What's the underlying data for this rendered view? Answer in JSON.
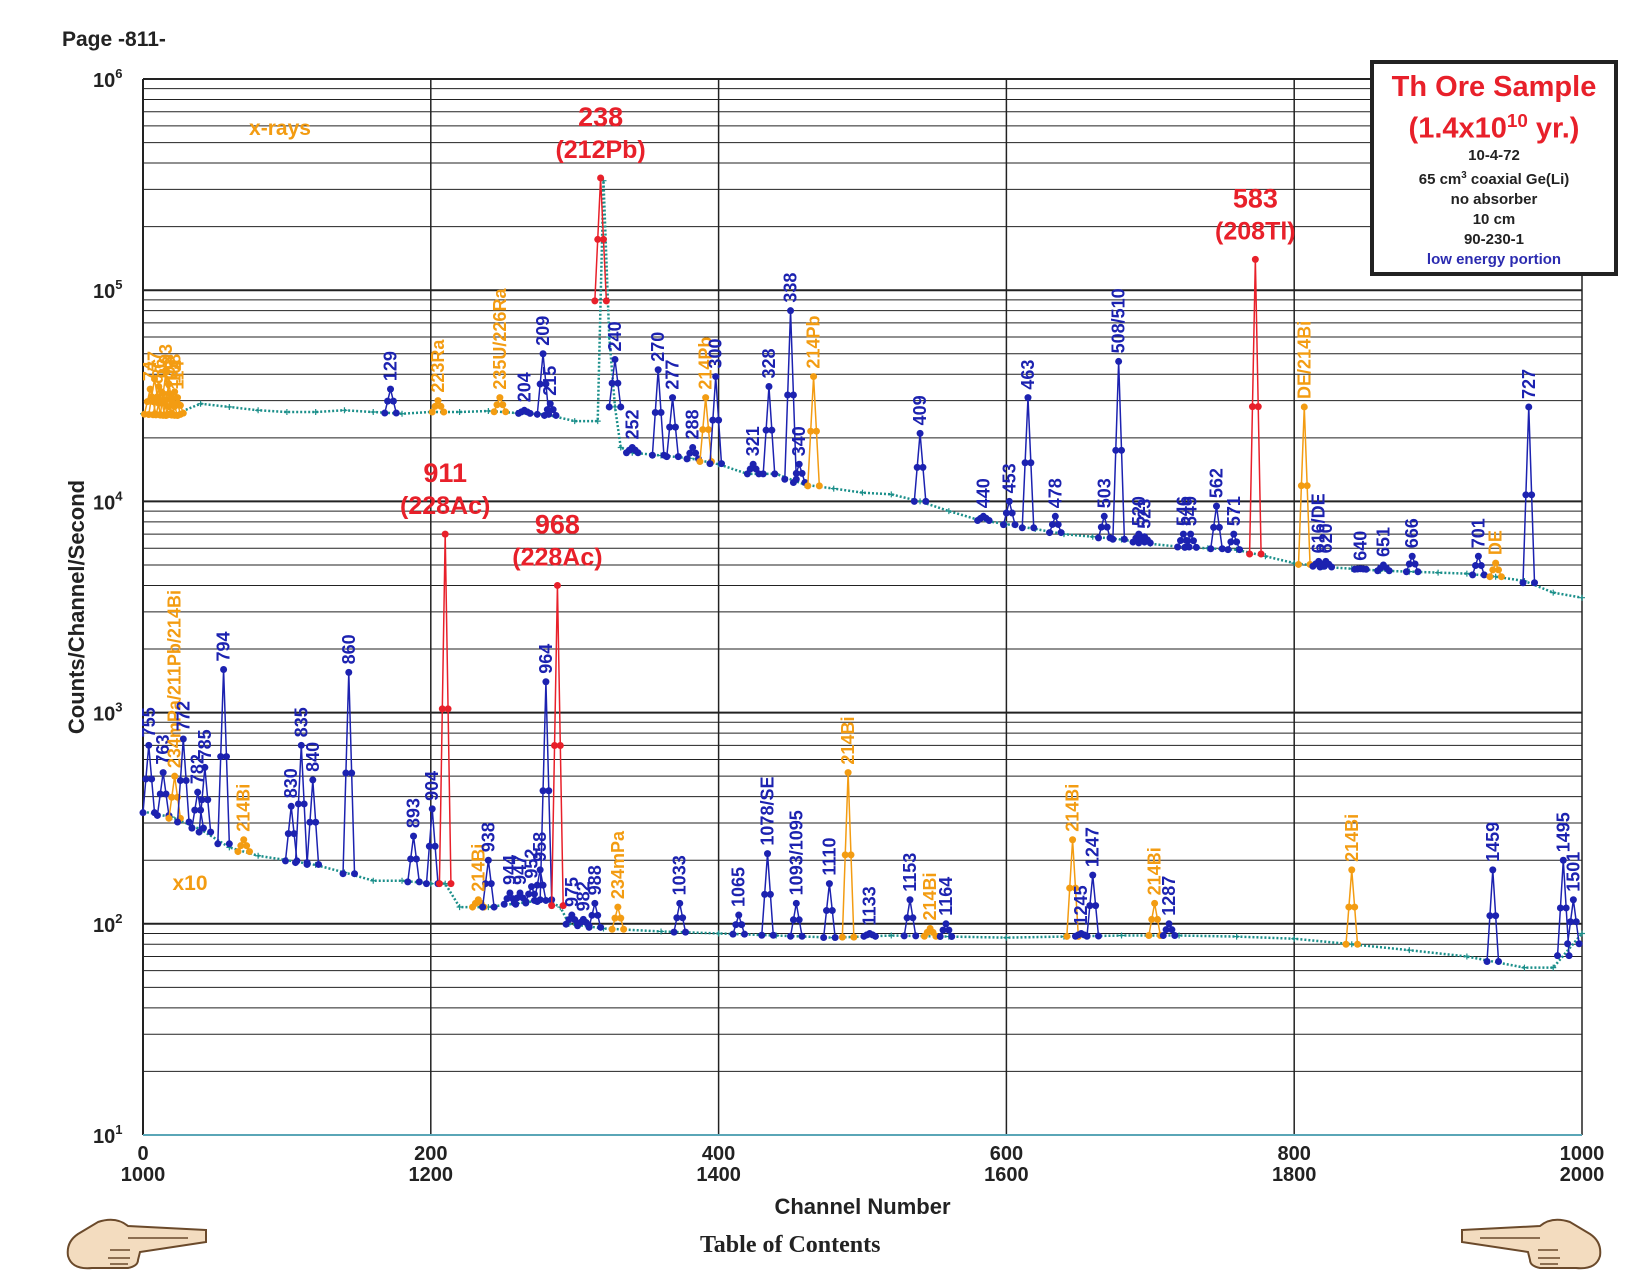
{
  "page_title": "Page -811-",
  "footer": {
    "toc_label": "Table of Contents",
    "prev_icon": "pointing-hand-left-icon",
    "next_icon": "pointing-hand-right-icon"
  },
  "info_box": {
    "title": "Th Ore Sample",
    "age_prefix": "(1.4x10",
    "age_exp": "10",
    "age_suffix": " yr.)",
    "date": "10-4-72",
    "detector_prefix": "65 cm",
    "detector_exp": "3",
    "detector_suffix": " coaxial Ge(Li)",
    "absorber": "no absorber",
    "distance": "10 cm",
    "id": "90-230-1",
    "portion": "low energy portion"
  },
  "colors": {
    "blue": "#1c22b0",
    "orange": "#f39c12",
    "red": "#e8202a",
    "teal": "#1b8f8a",
    "grid": "#222222"
  },
  "chart_data": {
    "type": "scatter",
    "ylabel": "Counts/Channel/Second",
    "xlabel": "Channel Number",
    "log_y": true,
    "ylim": [
      10,
      1000000
    ],
    "xlim": [
      0,
      1000
    ],
    "x_ticks_top": [
      "0",
      "200",
      "400",
      "600",
      "800",
      "1000"
    ],
    "x_ticks_bottom": [
      "1000",
      "1200",
      "1400",
      "1600",
      "1800",
      "2000"
    ],
    "y_ticks": [
      {
        "base": "10",
        "exp": "1",
        "value": 10
      },
      {
        "base": "10",
        "exp": "2",
        "value": 100
      },
      {
        "base": "10",
        "exp": "3",
        "value": 1000
      },
      {
        "base": "10",
        "exp": "4",
        "value": 10000
      },
      {
        "base": "10",
        "exp": "5",
        "value": 100000
      },
      {
        "base": "10",
        "exp": "6",
        "value": 1000000
      }
    ],
    "scale_note": "x10",
    "xray_label": "x-rays",
    "upper_series": [
      [
        0,
        26000
      ],
      [
        20,
        25500
      ],
      [
        40,
        29000
      ],
      [
        60,
        28000
      ],
      [
        80,
        27000
      ],
      [
        100,
        26500
      ],
      [
        120,
        26500
      ],
      [
        140,
        27000
      ],
      [
        160,
        26500
      ],
      [
        180,
        26000
      ],
      [
        200,
        26500
      ],
      [
        220,
        26500
      ],
      [
        240,
        26800
      ],
      [
        260,
        26200
      ],
      [
        280,
        25800
      ],
      [
        300,
        24000
      ],
      [
        316,
        24000
      ],
      [
        320,
        330000
      ],
      [
        324,
        60000
      ],
      [
        328,
        28000
      ],
      [
        332,
        18000
      ],
      [
        340,
        17000
      ],
      [
        360,
        16500
      ],
      [
        380,
        16000
      ],
      [
        400,
        15000
      ],
      [
        420,
        13500
      ],
      [
        440,
        13500
      ],
      [
        460,
        12000
      ],
      [
        480,
        11500
      ],
      [
        500,
        11000
      ],
      [
        520,
        10800
      ],
      [
        540,
        10000
      ],
      [
        560,
        9000
      ],
      [
        580,
        8200
      ],
      [
        600,
        7800
      ],
      [
        620,
        7400
      ],
      [
        640,
        7000
      ],
      [
        660,
        6800
      ],
      [
        680,
        6600
      ],
      [
        700,
        6300
      ],
      [
        720,
        6100
      ],
      [
        740,
        6000
      ],
      [
        760,
        5900
      ],
      [
        780,
        5500
      ],
      [
        800,
        5100
      ],
      [
        820,
        4900
      ],
      [
        840,
        4800
      ],
      [
        860,
        4700
      ],
      [
        880,
        4650
      ],
      [
        900,
        4600
      ],
      [
        920,
        4550
      ],
      [
        940,
        4400
      ],
      [
        960,
        4200
      ],
      [
        980,
        3700
      ],
      [
        1000,
        3500
      ]
    ],
    "lower_series": [
      [
        0,
        340
      ],
      [
        20,
        320
      ],
      [
        40,
        280
      ],
      [
        60,
        230
      ],
      [
        80,
        210
      ],
      [
        100,
        200
      ],
      [
        120,
        190
      ],
      [
        140,
        175
      ],
      [
        160,
        160
      ],
      [
        180,
        160
      ],
      [
        200,
        155
      ],
      [
        210,
        155
      ],
      [
        220,
        120
      ],
      [
        240,
        120
      ],
      [
        260,
        125
      ],
      [
        280,
        130
      ],
      [
        290,
        120
      ],
      [
        296,
        100
      ],
      [
        320,
        95
      ],
      [
        360,
        92
      ],
      [
        400,
        90
      ],
      [
        440,
        88
      ],
      [
        480,
        86
      ],
      [
        520,
        88
      ],
      [
        560,
        87
      ],
      [
        600,
        86
      ],
      [
        640,
        87
      ],
      [
        680,
        88
      ],
      [
        720,
        88
      ],
      [
        760,
        87
      ],
      [
        800,
        85
      ],
      [
        840,
        80
      ],
      [
        880,
        75
      ],
      [
        920,
        70
      ],
      [
        960,
        62
      ],
      [
        980,
        62
      ],
      [
        1000,
        90
      ]
    ],
    "peaks_upper": [
      {
        "x": 5,
        "y": 34000,
        "label": "74",
        "color": "orange"
      },
      {
        "x": 8,
        "y": 38000,
        "label": "77",
        "color": "orange"
      },
      {
        "x": 11,
        "y": 35000,
        "label": "86",
        "color": "orange"
      },
      {
        "x": 13,
        "y": 33000,
        "label": "90",
        "color": "orange"
      },
      {
        "x": 16,
        "y": 41000,
        "label": "93",
        "color": "orange"
      },
      {
        "x": 18,
        "y": 36000,
        "label": "98",
        "color": "orange"
      },
      {
        "x": 20,
        "y": 31000,
        "label": "105",
        "color": "orange"
      },
      {
        "x": 22,
        "y": 33000,
        "label": "108",
        "color": "orange"
      },
      {
        "x": 24,
        "y": 31000,
        "label": "114",
        "color": "orange"
      },
      {
        "x": 172,
        "y": 34000,
        "label": "129",
        "color": "blue"
      },
      {
        "x": 205,
        "y": 30000,
        "label": "223Ra",
        "color": "orange"
      },
      {
        "x": 248,
        "y": 31000,
        "label": "235U/226Ra",
        "color": "orange"
      },
      {
        "x": 265,
        "y": 27000,
        "label": "204",
        "color": "blue"
      },
      {
        "x": 278,
        "y": 50000,
        "label": "209",
        "color": "blue"
      },
      {
        "x": 283,
        "y": 29000,
        "label": "215",
        "color": "blue"
      },
      {
        "x": 318,
        "y": 340000,
        "label": "238",
        "sublabel": "(212Pb)",
        "color": "red"
      },
      {
        "x": 328,
        "y": 47000,
        "label": "240",
        "color": "blue"
      },
      {
        "x": 340,
        "y": 18000,
        "label": "252",
        "color": "blue"
      },
      {
        "x": 358,
        "y": 42000,
        "label": "270",
        "color": "blue"
      },
      {
        "x": 368,
        "y": 31000,
        "label": "277",
        "color": "blue"
      },
      {
        "x": 382,
        "y": 18000,
        "label": "288",
        "color": "blue"
      },
      {
        "x": 391,
        "y": 31000,
        "label": "214Pb",
        "color": "orange"
      },
      {
        "x": 398,
        "y": 39000,
        "label": "300",
        "color": "blue"
      },
      {
        "x": 424,
        "y": 15000,
        "label": "321",
        "color": "blue"
      },
      {
        "x": 435,
        "y": 35000,
        "label": "328",
        "color": "blue"
      },
      {
        "x": 450,
        "y": 80000,
        "label": "338",
        "color": "blue"
      },
      {
        "x": 456,
        "y": 15000,
        "label": "340",
        "color": "blue"
      },
      {
        "x": 466,
        "y": 39000,
        "label": "214Pb",
        "color": "orange"
      },
      {
        "x": 540,
        "y": 21000,
        "label": "409",
        "color": "blue"
      },
      {
        "x": 584,
        "y": 8500,
        "label": "440",
        "color": "blue"
      },
      {
        "x": 602,
        "y": 10000,
        "label": "453",
        "color": "blue"
      },
      {
        "x": 615,
        "y": 31000,
        "label": "463",
        "color": "blue"
      },
      {
        "x": 634,
        "y": 8500,
        "label": "478",
        "color": "blue"
      },
      {
        "x": 668,
        "y": 8500,
        "label": "503",
        "color": "blue"
      },
      {
        "x": 678,
        "y": 46000,
        "label": "508/510",
        "color": "blue"
      },
      {
        "x": 692,
        "y": 7000,
        "label": "520",
        "color": "blue"
      },
      {
        "x": 696,
        "y": 6800,
        "label": "523",
        "color": "blue"
      },
      {
        "x": 723,
        "y": 7000,
        "label": "546",
        "color": "blue"
      },
      {
        "x": 728,
        "y": 7000,
        "label": "549",
        "color": "blue"
      },
      {
        "x": 746,
        "y": 9500,
        "label": "562",
        "color": "blue"
      },
      {
        "x": 758,
        "y": 7000,
        "label": "571",
        "color": "blue"
      },
      {
        "x": 773,
        "y": 140000,
        "label": "583",
        "sublabel": "(208Tl)",
        "color": "red"
      },
      {
        "x": 807,
        "y": 28000,
        "label": "DE/214Bi",
        "color": "orange"
      },
      {
        "x": 817,
        "y": 5200,
        "label": "616/DE",
        "color": "blue"
      },
      {
        "x": 822,
        "y": 5200,
        "label": "620",
        "color": "blue"
      },
      {
        "x": 846,
        "y": 4800,
        "label": "640",
        "color": "blue"
      },
      {
        "x": 862,
        "y": 5000,
        "label": "651",
        "color": "blue"
      },
      {
        "x": 882,
        "y": 5500,
        "label": "666",
        "color": "blue"
      },
      {
        "x": 928,
        "y": 5500,
        "label": "701",
        "color": "blue"
      },
      {
        "x": 940,
        "y": 5100,
        "label": "DE",
        "color": "orange"
      },
      {
        "x": 963,
        "y": 28000,
        "label": "727",
        "color": "blue"
      }
    ],
    "peaks_lower": [
      {
        "x": 4,
        "y": 700,
        "label": "755",
        "color": "blue"
      },
      {
        "x": 14,
        "y": 520,
        "label": "763",
        "color": "blue"
      },
      {
        "x": 22,
        "y": 500,
        "label": "234mPa/211Pb/214Bi",
        "color": "orange"
      },
      {
        "x": 28,
        "y": 750,
        "label": "772",
        "color": "blue"
      },
      {
        "x": 38,
        "y": 420,
        "label": "782",
        "color": "blue"
      },
      {
        "x": 43,
        "y": 550,
        "label": "785",
        "color": "blue"
      },
      {
        "x": 56,
        "y": 1600,
        "label": "794",
        "color": "blue"
      },
      {
        "x": 70,
        "y": 250,
        "label": "214Bi",
        "color": "orange"
      },
      {
        "x": 103,
        "y": 360,
        "label": "830",
        "color": "blue"
      },
      {
        "x": 110,
        "y": 700,
        "label": "835",
        "color": "blue"
      },
      {
        "x": 118,
        "y": 480,
        "label": "840",
        "color": "blue"
      },
      {
        "x": 143,
        "y": 1550,
        "label": "860",
        "color": "blue"
      },
      {
        "x": 188,
        "y": 260,
        "label": "893",
        "color": "blue"
      },
      {
        "x": 201,
        "y": 350,
        "label": "904",
        "color": "blue"
      },
      {
        "x": 210,
        "y": 7000,
        "label": "911",
        "sublabel": "(228Ac)",
        "color": "red"
      },
      {
        "x": 233,
        "y": 130,
        "label": "214Bi",
        "color": "orange"
      },
      {
        "x": 240,
        "y": 200,
        "label": "938",
        "color": "blue"
      },
      {
        "x": 255,
        "y": 140,
        "label": "944",
        "color": "blue"
      },
      {
        "x": 262,
        "y": 140,
        "label": "947",
        "color": "blue"
      },
      {
        "x": 270,
        "y": 150,
        "label": "952",
        "color": "blue"
      },
      {
        "x": 276,
        "y": 180,
        "label": "958",
        "color": "blue"
      },
      {
        "x": 280,
        "y": 1400,
        "label": "964",
        "color": "blue"
      },
      {
        "x": 288,
        "y": 4000,
        "label": "968",
        "sublabel": "(228Ac)",
        "color": "red"
      },
      {
        "x": 298,
        "y": 110,
        "label": "975",
        "color": "blue"
      },
      {
        "x": 306,
        "y": 105,
        "label": "982",
        "color": "blue"
      },
      {
        "x": 314,
        "y": 125,
        "label": "988",
        "color": "blue"
      },
      {
        "x": 330,
        "y": 120,
        "label": "234mPa",
        "color": "orange"
      },
      {
        "x": 373,
        "y": 125,
        "label": "1033",
        "color": "blue"
      },
      {
        "x": 414,
        "y": 110,
        "label": "1065",
        "color": "blue"
      },
      {
        "x": 434,
        "y": 215,
        "label": "1078/SE",
        "color": "blue"
      },
      {
        "x": 454,
        "y": 125,
        "label": "1093/1095",
        "color": "blue"
      },
      {
        "x": 477,
        "y": 155,
        "label": "1110",
        "color": "blue"
      },
      {
        "x": 490,
        "y": 520,
        "label": "214Bi",
        "color": "orange"
      },
      {
        "x": 505,
        "y": 90,
        "label": "1133",
        "color": "blue"
      },
      {
        "x": 533,
        "y": 130,
        "label": "1153",
        "color": "blue"
      },
      {
        "x": 547,
        "y": 95,
        "label": "214Bi",
        "color": "orange"
      },
      {
        "x": 558,
        "y": 100,
        "label": "1164",
        "color": "blue"
      },
      {
        "x": 646,
        "y": 250,
        "label": "214Bi",
        "color": "orange"
      },
      {
        "x": 652,
        "y": 90,
        "label": "1245",
        "color": "blue"
      },
      {
        "x": 660,
        "y": 170,
        "label": "1247",
        "color": "blue"
      },
      {
        "x": 703,
        "y": 125,
        "label": "214Bi",
        "color": "orange"
      },
      {
        "x": 713,
        "y": 100,
        "label": "1287",
        "color": "blue"
      },
      {
        "x": 840,
        "y": 180,
        "label": "214Bi",
        "color": "orange"
      },
      {
        "x": 938,
        "y": 180,
        "label": "1459",
        "color": "blue"
      },
      {
        "x": 987,
        "y": 200,
        "label": "1495",
        "color": "blue"
      },
      {
        "x": 994,
        "y": 130,
        "label": "1501",
        "color": "blue"
      }
    ]
  }
}
